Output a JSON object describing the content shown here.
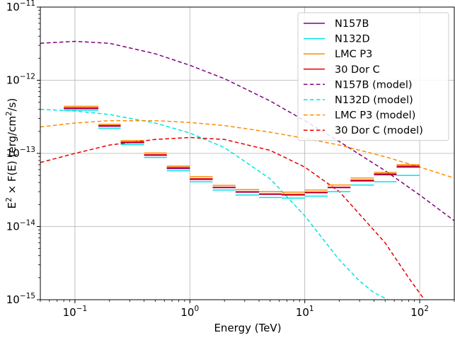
{
  "chart_data": {
    "type": "line",
    "xlabel": "Energy (TeV)",
    "ylabel": {
      "prefix": "E",
      "prefix_sup": "2",
      "middle": " × F(E) (erg/cm",
      "middle_sup": "2",
      "suffix": "/s)"
    },
    "xscale": "log",
    "yscale": "log",
    "xlim": [
      0.05,
      200
    ],
    "ylim": [
      1e-15,
      1e-11
    ],
    "grid": true,
    "legend_position": "top-right",
    "x_ticks": [
      {
        "base": "10",
        "exp": "−1",
        "value": 0.1
      },
      {
        "base": "10",
        "exp": "0",
        "value": 1
      },
      {
        "base": "10",
        "exp": "1",
        "value": 10
      },
      {
        "base": "10",
        "exp": "2",
        "value": 100
      }
    ],
    "y_ticks": [
      {
        "base": "10",
        "exp": "−15",
        "value": 1e-15
      },
      {
        "base": "10",
        "exp": "−14",
        "value": 1e-14
      },
      {
        "base": "10",
        "exp": "−13",
        "value": 1e-13
      },
      {
        "base": "10",
        "exp": "−12",
        "value": 1e-12
      },
      {
        "base": "10",
        "exp": "−11",
        "value": 1e-11
      }
    ],
    "bin_edges": [
      0.08,
      0.16,
      0.25,
      0.4,
      0.63,
      1.0,
      1.58,
      2.5,
      4.0,
      6.3,
      10.0,
      15.8,
      25.0,
      40.0,
      63.0,
      100.0
    ],
    "series": [
      {
        "name": "N157B",
        "color": "#800080",
        "style": "step",
        "y": [
          4.1e-13,
          2.35e-13,
          1.4e-13,
          9.4e-14,
          6.2e-14,
          4.4e-14,
          3.4e-14,
          2.95e-14,
          2.75e-14,
          2.7e-14,
          2.9e-14,
          3.4e-14,
          4.2e-14,
          5.1e-14,
          6.5e-14
        ]
      },
      {
        "name": "N132D",
        "color": "#00e5e5",
        "style": "step",
        "y": [
          3.9e-13,
          2.2e-13,
          1.32e-13,
          8.8e-14,
          5.8e-14,
          4.1e-14,
          3.15e-14,
          2.7e-14,
          2.5e-14,
          2.45e-14,
          2.6e-14,
          3e-14,
          3.7e-14,
          4.1e-14,
          5e-14
        ]
      },
      {
        "name": "LMC P3",
        "color": "#ff8c00",
        "style": "step",
        "y": [
          4.4e-13,
          2.5e-13,
          1.5e-13,
          1.01e-13,
          6.7e-14,
          4.8e-14,
          3.65e-14,
          3.2e-14,
          3e-14,
          2.95e-14,
          3.15e-14,
          3.7e-14,
          4.6e-14,
          5.5e-14,
          7e-14
        ]
      },
      {
        "name": "30 Dor C",
        "color": "#e60000",
        "style": "step",
        "y": [
          4.2e-13,
          2.4e-13,
          1.43e-13,
          9.6e-14,
          6.4e-14,
          4.5e-14,
          3.45e-14,
          3e-14,
          2.8e-14,
          2.75e-14,
          2.95e-14,
          3.45e-14,
          4.3e-14,
          5.25e-14,
          6.7e-14
        ]
      },
      {
        "name": "N157B (model)",
        "color": "#800080",
        "style": "dashed",
        "x": [
          0.05,
          0.1,
          0.2,
          0.5,
          1,
          2,
          5,
          10,
          20,
          50,
          100,
          200
        ],
        "y": [
          3.2e-12,
          3.4e-12,
          3.2e-12,
          2.3e-12,
          1.6e-12,
          1.05e-12,
          5.2e-13,
          2.8e-13,
          1.45e-13,
          5.8e-14,
          2.7e-14,
          1.2e-14
        ]
      },
      {
        "name": "N132D (model)",
        "color": "#00e5e5",
        "style": "dashed",
        "x": [
          0.05,
          0.1,
          0.2,
          0.5,
          1,
          2,
          5,
          10,
          20,
          30,
          40,
          53
        ],
        "y": [
          4e-13,
          3.8e-13,
          3.4e-13,
          2.6e-13,
          1.9e-13,
          1.2e-13,
          4.5e-14,
          1.4e-14,
          3.5e-15,
          1.8e-15,
          1.25e-15,
          1e-15
        ]
      },
      {
        "name": "LMC P3 (model)",
        "color": "#ff8c00",
        "style": "dashed",
        "x": [
          0.05,
          0.1,
          0.2,
          0.5,
          1,
          2,
          5,
          10,
          20,
          50,
          100,
          200
        ],
        "y": [
          2.3e-13,
          2.6e-13,
          2.8e-13,
          2.8e-13,
          2.65e-13,
          2.4e-13,
          1.95e-13,
          1.6e-13,
          1.3e-13,
          9e-14,
          6.5e-14,
          4.6e-14
        ]
      },
      {
        "name": "30 Dor C (model)",
        "color": "#e60000",
        "style": "dashed",
        "x": [
          0.05,
          0.1,
          0.2,
          0.5,
          1,
          2,
          5,
          10,
          20,
          50,
          80,
          110
        ],
        "y": [
          7.5e-14,
          1e-13,
          1.3e-13,
          1.55e-13,
          1.65e-13,
          1.55e-13,
          1.1e-13,
          6.5e-14,
          3e-14,
          6e-15,
          2e-15,
          1e-15
        ]
      }
    ]
  }
}
